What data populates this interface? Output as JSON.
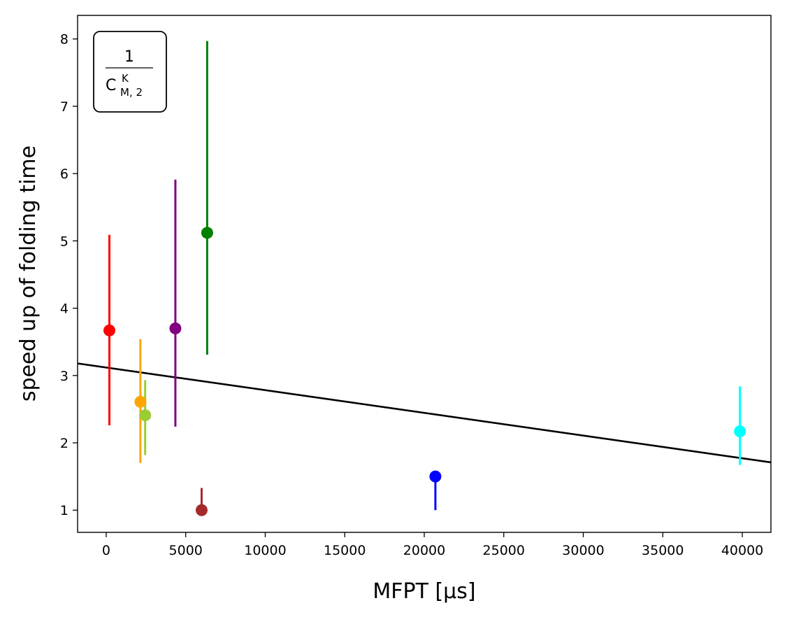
{
  "chart_data": {
    "type": "scatter",
    "xlabel": "MFPT [µs]",
    "ylabel": "speed up of folding time",
    "xlim": [
      -1800,
      41800
    ],
    "ylim": [
      0.67,
      8.35
    ],
    "x_ticks": [
      0,
      5000,
      10000,
      15000,
      20000,
      25000,
      30000,
      35000,
      40000
    ],
    "y_ticks": [
      1,
      2,
      3,
      4,
      5,
      6,
      7,
      8
    ],
    "grid": false,
    "annotation": {
      "numerator": "1",
      "base": "C",
      "superscript": "K",
      "subscript": "M, 2",
      "placement": "top-left"
    },
    "points": [
      {
        "x": 200,
        "y": 3.67,
        "err_low": 2.26,
        "err_high": 5.09,
        "color": "#ff0000"
      },
      {
        "x": 2150,
        "y": 2.61,
        "err_low": 1.7,
        "err_high": 3.54,
        "color": "#ffa500"
      },
      {
        "x": 2450,
        "y": 2.41,
        "err_low": 1.82,
        "err_high": 2.93,
        "color": "#9acd32"
      },
      {
        "x": 4350,
        "y": 3.7,
        "err_low": 2.24,
        "err_high": 5.91,
        "color": "#800080"
      },
      {
        "x": 6000,
        "y": 1.0,
        "err_low": 1.0,
        "err_high": 1.33,
        "color": "#a52a2a"
      },
      {
        "x": 6350,
        "y": 5.12,
        "err_low": 3.31,
        "err_high": 7.97,
        "color": "#008000"
      },
      {
        "x": 20700,
        "y": 1.5,
        "err_low": 1.0,
        "err_high": 1.5,
        "color": "#0000ff"
      },
      {
        "x": 39850,
        "y": 2.17,
        "err_low": 1.67,
        "err_high": 2.84,
        "color": "#00ffff"
      }
    ],
    "fit_line": {
      "x": [
        -1800,
        41800
      ],
      "y": [
        3.18,
        1.71
      ],
      "color": "#000000"
    }
  }
}
